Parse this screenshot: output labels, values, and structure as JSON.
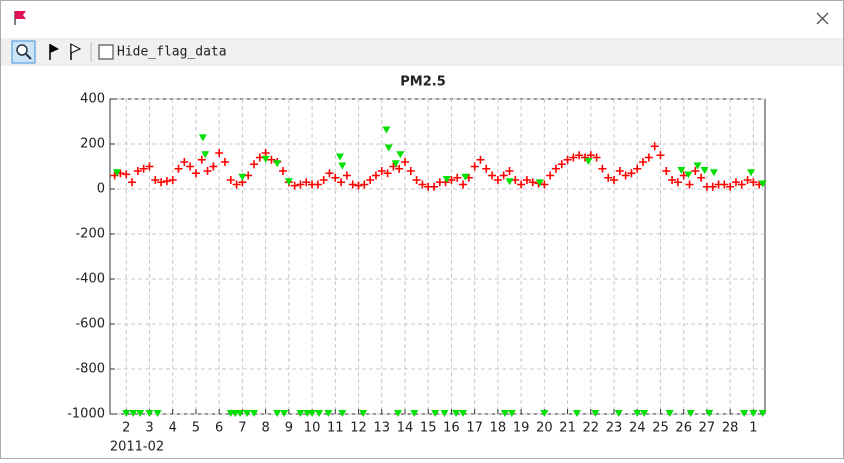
{
  "toolbar": {
    "checkbox_label": "Hide_flag_data"
  },
  "chart_data": {
    "type": "scatter",
    "title": "PM2.5",
    "xlabel": "2011-02",
    "xlim": [
      1.3,
      29.5
    ],
    "ylim": [
      -1000,
      400
    ],
    "xticks": [
      2,
      3,
      4,
      5,
      6,
      7,
      8,
      9,
      10,
      11,
      12,
      13,
      14,
      15,
      16,
      17,
      18,
      19,
      20,
      21,
      22,
      23,
      24,
      25,
      26,
      27,
      28,
      {
        "value": 29,
        "label": "1"
      }
    ],
    "yticks": [
      -1000,
      -800,
      -600,
      -400,
      -200,
      0,
      200,
      400
    ],
    "grid": true,
    "series": [
      {
        "marker": "plus",
        "color": "#ff0000",
        "x": [
          1.5,
          1.75,
          2,
          2.25,
          2.5,
          2.75,
          3,
          3.25,
          3.5,
          3.75,
          4,
          4.25,
          4.5,
          4.75,
          5,
          5.25,
          5.5,
          5.75,
          6,
          6.25,
          6.5,
          6.75,
          7,
          7.25,
          7.5,
          7.75,
          8,
          8.25,
          8.5,
          8.75,
          9,
          9.25,
          9.5,
          9.75,
          10,
          10.25,
          10.5,
          10.75,
          11,
          11.25,
          11.5,
          11.75,
          12,
          12.25,
          12.5,
          12.75,
          13,
          13.25,
          13.5,
          13.75,
          14,
          14.25,
          14.5,
          14.75,
          15,
          15.25,
          15.5,
          15.75,
          16,
          16.25,
          16.5,
          16.75,
          17,
          17.25,
          17.5,
          17.75,
          18,
          18.25,
          18.5,
          18.75,
          19,
          19.25,
          19.5,
          19.75,
          20,
          20.25,
          20.5,
          20.75,
          21,
          21.25,
          21.5,
          21.75,
          22,
          22.25,
          22.5,
          22.75,
          23,
          23.25,
          23.5,
          23.75,
          24,
          24.25,
          24.5,
          24.75,
          25,
          25.25,
          25.5,
          25.75,
          26,
          26.25,
          26.5,
          26.75,
          27,
          27.25,
          27.5,
          27.75,
          28,
          28.25,
          28.5,
          28.75,
          29,
          29.25
        ],
        "values": [
          60,
          70,
          65,
          30,
          80,
          90,
          100,
          40,
          30,
          35,
          40,
          90,
          120,
          100,
          70,
          130,
          80,
          100,
          160,
          120,
          40,
          20,
          30,
          60,
          110,
          140,
          160,
          130,
          120,
          80,
          30,
          15,
          20,
          30,
          20,
          20,
          40,
          70,
          50,
          30,
          60,
          20,
          15,
          20,
          40,
          60,
          80,
          70,
          100,
          90,
          120,
          80,
          40,
          20,
          10,
          10,
          30,
          30,
          40,
          50,
          20,
          50,
          100,
          130,
          90,
          60,
          40,
          60,
          80,
          40,
          20,
          40,
          30,
          25,
          20,
          60,
          90,
          110,
          130,
          140,
          150,
          140,
          150,
          140,
          90,
          50,
          40,
          80,
          60,
          70,
          90,
          120,
          140,
          190,
          150,
          80,
          40,
          30,
          60,
          20,
          80,
          50,
          10,
          10,
          20,
          20,
          10,
          30,
          20,
          40,
          30,
          20
        ]
      },
      {
        "marker": "triangle-down",
        "color": "#00e000",
        "x": [
          1.6,
          5.3,
          5.4,
          7.0,
          8.0,
          8.5,
          9.0,
          11.2,
          11.3,
          13.2,
          13.3,
          13.6,
          13.8,
          15.8,
          16.6,
          18.5,
          19.8,
          21.9,
          25.9,
          26.2,
          26.6,
          26.9,
          27.3,
          28.9,
          29.4,
          2,
          2.3,
          2.6,
          3.0,
          3.35,
          6.5,
          6.7,
          6.9,
          7.2,
          7.5,
          8.5,
          8.8,
          9.5,
          9.8,
          10.0,
          10.3,
          10.7,
          11.3,
          12.2,
          13.7,
          14.4,
          15.3,
          15.7,
          16.2,
          16.5,
          18.3,
          18.6,
          20.0,
          21.4,
          22.2,
          23.2,
          24.0,
          24.3,
          25.4,
          26.3,
          27.1,
          28.6,
          29.0,
          29.4
        ],
        "values": [
          70,
          225,
          150,
          50,
          130,
          110,
          30,
          140,
          100,
          260,
          180,
          110,
          150,
          40,
          50,
          30,
          25,
          120,
          80,
          60,
          100,
          80,
          70,
          70,
          20,
          -1000,
          -1000,
          -1000,
          -1000,
          -1000,
          -1000,
          -1000,
          -1000,
          -1000,
          -1000,
          -1000,
          -1000,
          -1000,
          -1000,
          -1000,
          -1000,
          -1000,
          -1000,
          -1000,
          -1000,
          -1000,
          -1000,
          -1000,
          -1000,
          -1000,
          -1000,
          -1000,
          -1000,
          -1000,
          -1000,
          -1000,
          -1000,
          -1000,
          -1000,
          -1000,
          -1000,
          -1000,
          -1000,
          -1000
        ]
      }
    ]
  }
}
